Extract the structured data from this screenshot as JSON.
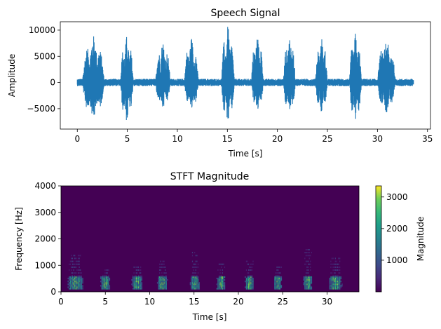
{
  "chart_data": [
    {
      "type": "line",
      "title": "Speech Signal",
      "xlabel": "Time [s]",
      "ylabel": "Amplitude",
      "xlim": [
        -1.7,
        35.3
      ],
      "ylim": [
        -8900,
        11600
      ],
      "xticks": [
        0,
        5,
        10,
        15,
        20,
        25,
        30,
        35
      ],
      "yticks": [
        -5000,
        0,
        5000,
        10000
      ],
      "grid": false,
      "color": "#1f77b4",
      "duration": 33.6,
      "noise_floor": 700,
      "bursts": [
        {
          "start": 0.5,
          "end": 2.7,
          "max": 9000,
          "min": -7000
        },
        {
          "start": 4.3,
          "end": 5.6,
          "max": 9000,
          "min": -7600
        },
        {
          "start": 7.8,
          "end": 9.3,
          "max": 8100,
          "min": -5200
        },
        {
          "start": 10.7,
          "end": 12.1,
          "max": 8700,
          "min": -5400
        },
        {
          "start": 14.4,
          "end": 15.7,
          "max": 10800,
          "min": -7700
        },
        {
          "start": 17.4,
          "end": 18.6,
          "max": 9500,
          "min": -5300
        },
        {
          "start": 20.6,
          "end": 21.8,
          "max": 9100,
          "min": -6200
        },
        {
          "start": 23.8,
          "end": 25.0,
          "max": 8900,
          "min": -5600
        },
        {
          "start": 27.2,
          "end": 28.4,
          "max": 9500,
          "min": -8100
        },
        {
          "start": 30.0,
          "end": 31.8,
          "max": 8600,
          "min": -5800
        }
      ]
    },
    {
      "type": "heatmap",
      "title": "STFT Magnitude",
      "xlabel": "Time [s]",
      "ylabel": "Frequency [Hz]",
      "xlim": [
        0,
        33.6
      ],
      "ylim": [
        0,
        4000
      ],
      "xticks": [
        0,
        5,
        10,
        15,
        20,
        25,
        30
      ],
      "yticks": [
        0,
        1000,
        2000,
        3000,
        4000
      ],
      "colormap": "viridis",
      "colorbar": {
        "label": "Magnitude",
        "range": [
          0,
          3350
        ],
        "ticks": [
          1000,
          2000,
          3000
        ]
      },
      "background_color": "#440154",
      "energy_bands_hz": [
        [
          100,
          600
        ],
        [
          600,
          1600
        ]
      ],
      "voiced_segments": [
        {
          "start": 0.5,
          "end": 2.7,
          "peak_hz": 1400
        },
        {
          "start": 4.3,
          "end": 5.6,
          "peak_hz": 900
        },
        {
          "start": 7.8,
          "end": 9.3,
          "peak_hz": 1000
        },
        {
          "start": 10.7,
          "end": 12.1,
          "peak_hz": 1200
        },
        {
          "start": 14.4,
          "end": 15.7,
          "peak_hz": 1500
        },
        {
          "start": 17.4,
          "end": 18.6,
          "peak_hz": 1100
        },
        {
          "start": 20.6,
          "end": 21.8,
          "peak_hz": 1200
        },
        {
          "start": 23.8,
          "end": 25.0,
          "peak_hz": 1000
        },
        {
          "start": 27.2,
          "end": 28.4,
          "peak_hz": 1700
        },
        {
          "start": 30.0,
          "end": 31.8,
          "peak_hz": 1300
        }
      ]
    }
  ]
}
